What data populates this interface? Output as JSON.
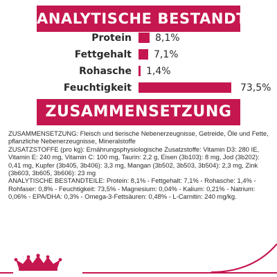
{
  "analytic": {
    "title": "ANALYTISCHE BESTANDTEILE",
    "rows": [
      {
        "label": "Protein",
        "value_text": "8,1%",
        "value": 8.1
      },
      {
        "label": "Fettgehalt",
        "value_text": "7,1%",
        "value": 7.1
      },
      {
        "label": "Rohasche",
        "value_text": "1,4%",
        "value": 1.4
      },
      {
        "label": "Feuchtigkeit",
        "value_text": "73,5%",
        "value": 73.5
      }
    ]
  },
  "composition": {
    "title": "ZUSAMMENSETZUNG",
    "text": "ZUSAMMENSETZUNG: Fleisch und tierische Nebenerzeugnisse, Getreide, Öle und Fette, pflanzliche Nebenerzeugnisse, Mineralstoffe\nZUSATZSTOFFE (pro kg): Ernährungsphysiologische Zusatzstoffe: Vitamin D3: 280 IE, Vitamin E: 240 mg, Vitamin C: 100 mg, Taurin: 2,2 g, Eisen (3b103): 8 mg, Jod (3b202): 0,41 mg, Kupfer (3b405, 3b406): 3,3 mg, Mangan (3b502, 3b503, 3b504): 2,3 mg, Zink (3b603, 3b605, 3b606): 23 mg\nANALYTISCHE BESTANDTEILE: Protein: 8,1% - Fettgehalt: 7,1% - Rohasche: 1,4% - Rohfaser: 0,8% - Feuchtigkeit: 73,5% - Magnesium: 0,04% - Kalium: 0,21% - Natrium: 0,06% - EPA/DHA: 0,3% - Omega-3-Fettsäuren: 0,48% - L-Carnitin: 240 mg/kg."
  },
  "colors": {
    "accent": "#c5174f",
    "text": "#2a2a2a"
  },
  "logo": {
    "icon": "royal-canin-crown-logo-icon"
  }
}
